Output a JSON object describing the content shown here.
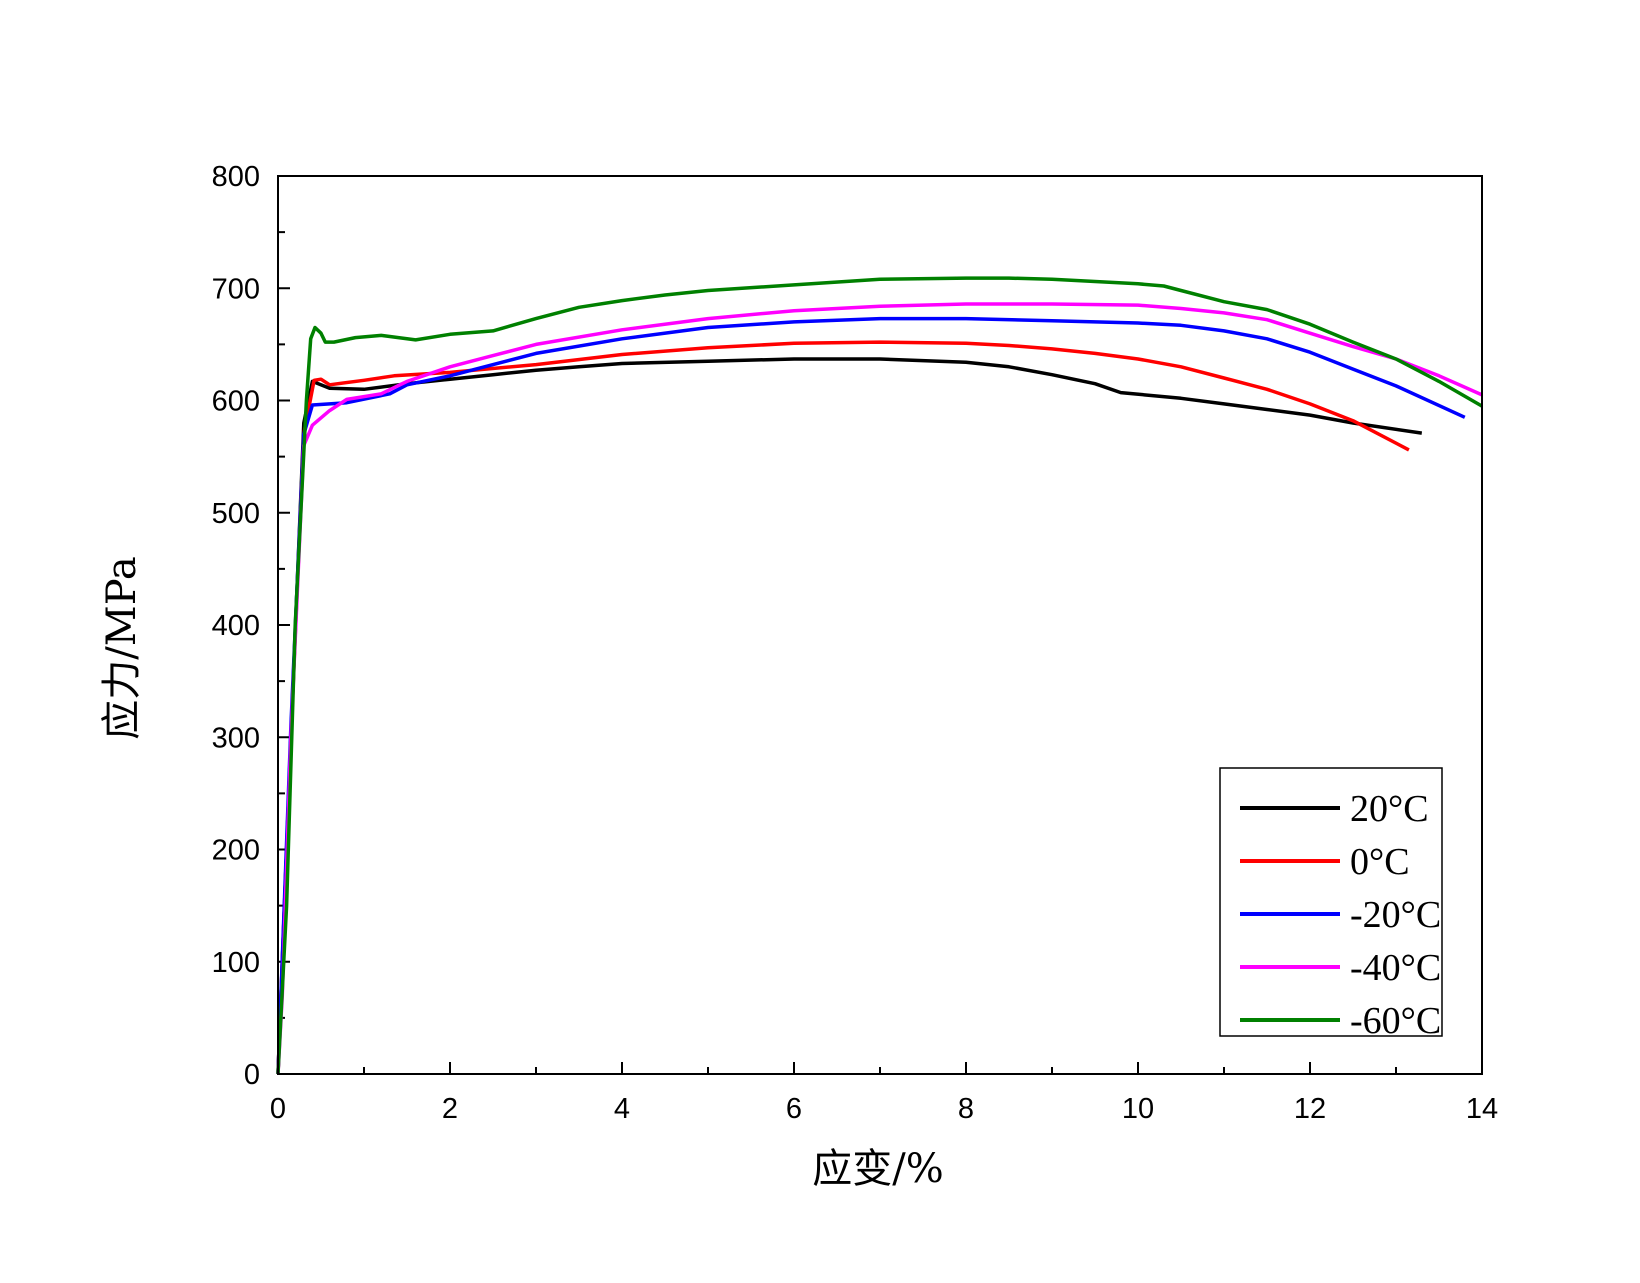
{
  "chart_data": {
    "type": "line",
    "title": "",
    "xlabel": "应变/%",
    "ylabel": "应力/MPa",
    "xlim": [
      0,
      14
    ],
    "ylim": [
      0,
      800
    ],
    "x_ticks": [
      "0",
      "2",
      "4",
      "6",
      "8",
      "10",
      "12",
      "14"
    ],
    "y_ticks": [
      "0",
      "100",
      "200",
      "300",
      "400",
      "500",
      "600",
      "700",
      "800"
    ],
    "grid": false,
    "legend_position": "bottom-right",
    "series": [
      {
        "name": "20°C",
        "color": "#000000",
        "points": [
          [
            0,
            0
          ],
          [
            0.15,
            300
          ],
          [
            0.3,
            580
          ],
          [
            0.4,
            617
          ],
          [
            0.6,
            611
          ],
          [
            1.0,
            610
          ],
          [
            1.5,
            615
          ],
          [
            2,
            619
          ],
          [
            2.5,
            623
          ],
          [
            3,
            627
          ],
          [
            3.5,
            630
          ],
          [
            4,
            633
          ],
          [
            5,
            635
          ],
          [
            6,
            637
          ],
          [
            7,
            637
          ],
          [
            8,
            634
          ],
          [
            8.5,
            630
          ],
          [
            9,
            623
          ],
          [
            9.5,
            615
          ],
          [
            9.8,
            607
          ],
          [
            10.5,
            602
          ],
          [
            11,
            597
          ],
          [
            11.5,
            592
          ],
          [
            12,
            587
          ],
          [
            12.5,
            580
          ],
          [
            13.3,
            571
          ]
        ]
      },
      {
        "name": "0°C",
        "color": "#ff0000",
        "points": [
          [
            0,
            0
          ],
          [
            0.15,
            300
          ],
          [
            0.3,
            570
          ],
          [
            0.42,
            618
          ],
          [
            0.5,
            619
          ],
          [
            0.6,
            614
          ],
          [
            1.0,
            618
          ],
          [
            1.35,
            622
          ],
          [
            2,
            625
          ],
          [
            3,
            632
          ],
          [
            4,
            641
          ],
          [
            5,
            647
          ],
          [
            6,
            651
          ],
          [
            7,
            652
          ],
          [
            8,
            651
          ],
          [
            8.5,
            649
          ],
          [
            9,
            646
          ],
          [
            9.5,
            642
          ],
          [
            10,
            637
          ],
          [
            10.5,
            630
          ],
          [
            11,
            620
          ],
          [
            11.5,
            610
          ],
          [
            12,
            597
          ],
          [
            12.5,
            582
          ],
          [
            13.15,
            556
          ]
        ]
      },
      {
        "name": "-20°C",
        "color": "#0000ff",
        "points": [
          [
            0,
            0
          ],
          [
            0.15,
            310
          ],
          [
            0.3,
            570
          ],
          [
            0.4,
            596
          ],
          [
            0.8,
            598
          ],
          [
            1.3,
            606
          ],
          [
            1.5,
            614
          ],
          [
            2,
            622
          ],
          [
            3,
            642
          ],
          [
            4,
            655
          ],
          [
            5,
            665
          ],
          [
            6,
            670
          ],
          [
            7,
            673
          ],
          [
            8,
            673
          ],
          [
            9,
            671
          ],
          [
            10,
            669
          ],
          [
            10.5,
            667
          ],
          [
            11,
            662
          ],
          [
            11.5,
            655
          ],
          [
            12,
            643
          ],
          [
            12.5,
            628
          ],
          [
            13,
            613
          ],
          [
            13.8,
            585
          ]
        ]
      },
      {
        "name": "-40°C",
        "color": "#ff00ff",
        "points": [
          [
            0,
            0
          ],
          [
            0.05,
            70
          ],
          [
            0.15,
            300
          ],
          [
            0.3,
            560
          ],
          [
            0.4,
            578
          ],
          [
            0.6,
            591
          ],
          [
            0.8,
            601
          ],
          [
            1.2,
            606
          ],
          [
            1.5,
            617
          ],
          [
            2,
            630
          ],
          [
            2.5,
            640
          ],
          [
            3,
            650
          ],
          [
            4,
            663
          ],
          [
            5,
            673
          ],
          [
            6,
            680
          ],
          [
            7,
            684
          ],
          [
            8,
            686
          ],
          [
            9,
            686
          ],
          [
            10,
            685
          ],
          [
            10.5,
            682
          ],
          [
            11,
            678
          ],
          [
            11.5,
            672
          ],
          [
            12,
            660
          ],
          [
            12.5,
            648
          ],
          [
            13,
            637
          ],
          [
            13.5,
            622
          ],
          [
            14,
            605
          ]
        ]
      },
      {
        "name": "-60°C",
        "color": "#008000",
        "points": [
          [
            0,
            0
          ],
          [
            0.1,
            150
          ],
          [
            0.2,
            400
          ],
          [
            0.33,
            600
          ],
          [
            0.38,
            655
          ],
          [
            0.43,
            665
          ],
          [
            0.5,
            660
          ],
          [
            0.55,
            652
          ],
          [
            0.65,
            652
          ],
          [
            0.9,
            656
          ],
          [
            1.2,
            658
          ],
          [
            1.6,
            654
          ],
          [
            2,
            659
          ],
          [
            2.5,
            662
          ],
          [
            3,
            673
          ],
          [
            3.5,
            683
          ],
          [
            4,
            689
          ],
          [
            4.5,
            694
          ],
          [
            5,
            698
          ],
          [
            6,
            703
          ],
          [
            7,
            708
          ],
          [
            8,
            709
          ],
          [
            8.5,
            709
          ],
          [
            9,
            708
          ],
          [
            9.5,
            706
          ],
          [
            10,
            704
          ],
          [
            10.3,
            702
          ],
          [
            10.5,
            698
          ],
          [
            11,
            688
          ],
          [
            11.5,
            681
          ],
          [
            12,
            668
          ],
          [
            12.5,
            652
          ],
          [
            13,
            637
          ],
          [
            13.5,
            617
          ],
          [
            14,
            595
          ]
        ]
      }
    ]
  }
}
